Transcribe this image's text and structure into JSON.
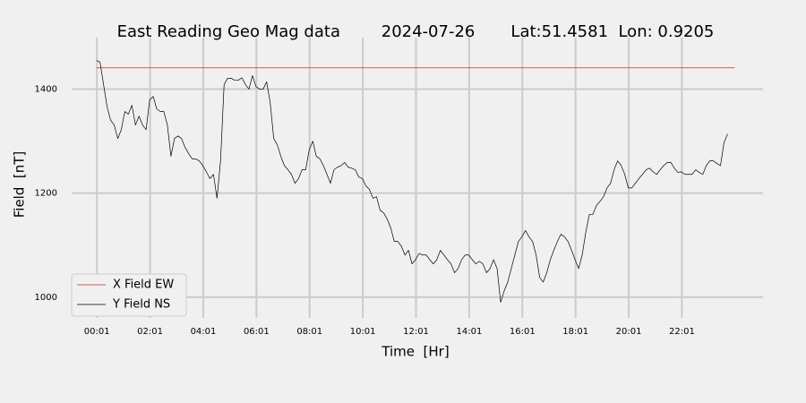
{
  "chart_data": {
    "type": "line",
    "title": "East Reading Geo Mag data        2024-07-26       Lat:51.4581  Lon: 0.9205",
    "xlabel": "Time  [Hr]",
    "ylabel": "Field  [nT]",
    "xlim": [
      -56,
      1504
    ],
    "ylim": [
      960,
      1475
    ],
    "xticks": [
      {
        "value": 1,
        "label": "00:01"
      },
      {
        "value": 121,
        "label": "02:01"
      },
      {
        "value": 241,
        "label": "04:01"
      },
      {
        "value": 361,
        "label": "06:01"
      },
      {
        "value": 481,
        "label": "08:01"
      },
      {
        "value": 601,
        "label": "10:01"
      },
      {
        "value": 721,
        "label": "12:01"
      },
      {
        "value": 841,
        "label": "14:01"
      },
      {
        "value": 961,
        "label": "16:01"
      },
      {
        "value": 1081,
        "label": "18:01"
      },
      {
        "value": 1201,
        "label": "20:01"
      },
      {
        "value": 1321,
        "label": "22:01"
      }
    ],
    "yticks": [
      1000,
      1200,
      1400
    ],
    "grid": true,
    "legend": "lower left",
    "series": [
      {
        "name": "X Field EW",
        "color": "#d62728",
        "x": [
          0,
          1440
        ],
        "values": [
          1441,
          1441
        ]
      },
      {
        "name": "Y Field NS",
        "color": "#000000",
        "x": [
          0,
          8,
          16,
          24,
          32,
          40,
          48,
          56,
          64,
          72,
          80,
          88,
          96,
          104,
          112,
          120,
          128,
          136,
          144,
          152,
          160,
          168,
          176,
          184,
          192,
          200,
          208,
          216,
          224,
          232,
          240,
          248,
          256,
          264,
          272,
          280,
          288,
          296,
          304,
          312,
          320,
          328,
          336,
          344,
          352,
          360,
          368,
          376,
          384,
          392,
          400,
          408,
          416,
          424,
          432,
          440,
          448,
          456,
          464,
          472,
          480,
          488,
          496,
          504,
          512,
          520,
          528,
          536,
          544,
          552,
          560,
          568,
          576,
          584,
          592,
          600,
          608,
          616,
          624,
          632,
          640,
          648,
          656,
          664,
          672,
          680,
          688,
          696,
          704,
          712,
          720,
          728,
          736,
          744,
          752,
          760,
          768,
          776,
          784,
          792,
          800,
          808,
          816,
          824,
          832,
          840,
          848,
          856,
          864,
          872,
          880,
          888,
          896,
          904,
          912,
          920,
          928,
          936,
          944,
          952,
          960,
          968,
          976,
          984,
          992,
          1000,
          1008,
          1016,
          1024,
          1032,
          1040,
          1048,
          1056,
          1064,
          1072,
          1080,
          1088,
          1096,
          1104,
          1112,
          1120,
          1128,
          1136,
          1144,
          1152,
          1160,
          1168,
          1176,
          1184,
          1192,
          1200,
          1208,
          1216,
          1224,
          1232,
          1240,
          1248,
          1256,
          1264,
          1272,
          1280,
          1288,
          1296,
          1304,
          1312,
          1320,
          1328,
          1336,
          1344,
          1352,
          1360,
          1368,
          1376,
          1384,
          1392,
          1400,
          1408,
          1416,
          1424
        ],
        "values": [
          1455,
          1452,
          1409,
          1366,
          1340,
          1331,
          1305,
          1322,
          1357,
          1352,
          1369,
          1331,
          1348,
          1331,
          1322,
          1379,
          1386,
          1362,
          1357,
          1357,
          1331,
          1271,
          1305,
          1310,
          1305,
          1288,
          1276,
          1266,
          1266,
          1262,
          1253,
          1241,
          1228,
          1236,
          1190,
          1262,
          1409,
          1421,
          1421,
          1417,
          1417,
          1422,
          1409,
          1400,
          1426,
          1405,
          1400,
          1400,
          1414,
          1374,
          1305,
          1293,
          1271,
          1253,
          1245,
          1236,
          1219,
          1228,
          1245,
          1245,
          1283,
          1300,
          1271,
          1266,
          1253,
          1236,
          1219,
          1245,
          1250,
          1253,
          1259,
          1250,
          1248,
          1245,
          1231,
          1228,
          1214,
          1207,
          1190,
          1193,
          1167,
          1162,
          1150,
          1133,
          1107,
          1107,
          1098,
          1081,
          1090,
          1064,
          1072,
          1084,
          1081,
          1081,
          1072,
          1064,
          1072,
          1090,
          1081,
          1072,
          1064,
          1047,
          1055,
          1072,
          1081,
          1081,
          1072,
          1064,
          1069,
          1064,
          1047,
          1055,
          1072,
          1055,
          990,
          1012,
          1029,
          1055,
          1081,
          1107,
          1116,
          1128,
          1116,
          1107,
          1081,
          1038,
          1029,
          1047,
          1072,
          1090,
          1107,
          1121,
          1116,
          1107,
          1090,
          1072,
          1055,
          1081,
          1124,
          1159,
          1159,
          1176,
          1184,
          1193,
          1210,
          1219,
          1245,
          1262,
          1253,
          1236,
          1210,
          1210,
          1219,
          1228,
          1236,
          1245,
          1248,
          1241,
          1236,
          1245,
          1253,
          1259,
          1259,
          1248,
          1240,
          1241,
          1236,
          1236,
          1236,
          1245,
          1240,
          1236,
          1253,
          1262,
          1262,
          1257,
          1253,
          1297,
          1314
        ]
      }
    ]
  }
}
